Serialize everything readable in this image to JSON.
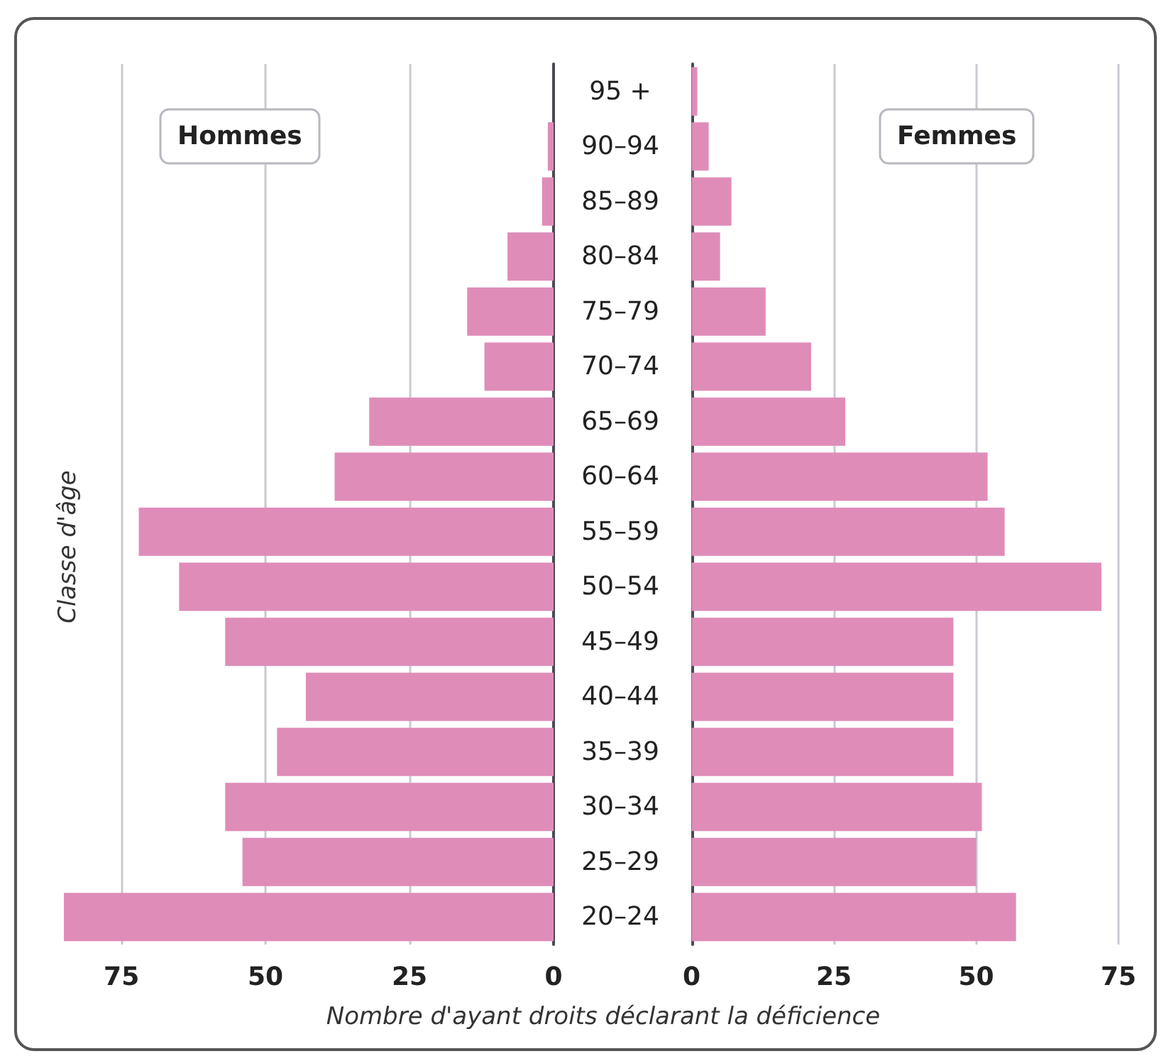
{
  "chart_data": [
    {
      "type": "bar",
      "orientation": "horizontal",
      "title": "Hommes",
      "ylabel": "Classe d'âge",
      "categories": [
        "95 +",
        "90–94",
        "85–89",
        "80–84",
        "75–79",
        "70–74",
        "65–69",
        "60–64",
        "55–59",
        "50–54",
        "45–49",
        "40–44",
        "35–39",
        "30–34",
        "25–29",
        "20–24"
      ],
      "values": [
        0,
        1,
        2,
        8,
        15,
        12,
        32,
        38,
        72,
        65,
        57,
        43,
        48,
        57,
        54,
        85
      ],
      "color": "#df8cb9",
      "xlim": [
        85,
        0
      ],
      "xticks": [
        75,
        50,
        25,
        0
      ],
      "grid": "x"
    },
    {
      "type": "bar",
      "orientation": "horizontal",
      "title": "Femmes",
      "xlabel": "Nombre d'ayant droits déclarant la déficience",
      "categories": [
        null,
        null,
        null,
        null,
        null,
        null,
        null,
        null,
        null,
        null,
        null,
        null,
        null,
        null,
        null,
        null
      ],
      "values": [
        1,
        3,
        7,
        5,
        13,
        21,
        27,
        52,
        55,
        72,
        46,
        46,
        46,
        51,
        50,
        57
      ],
      "color": "#df8cb9",
      "xlim": [
        0,
        75
      ],
      "xticks": [
        0,
        25,
        50,
        75
      ],
      "grid": "x",
      "tick_labels": "x"
    }
  ]
}
